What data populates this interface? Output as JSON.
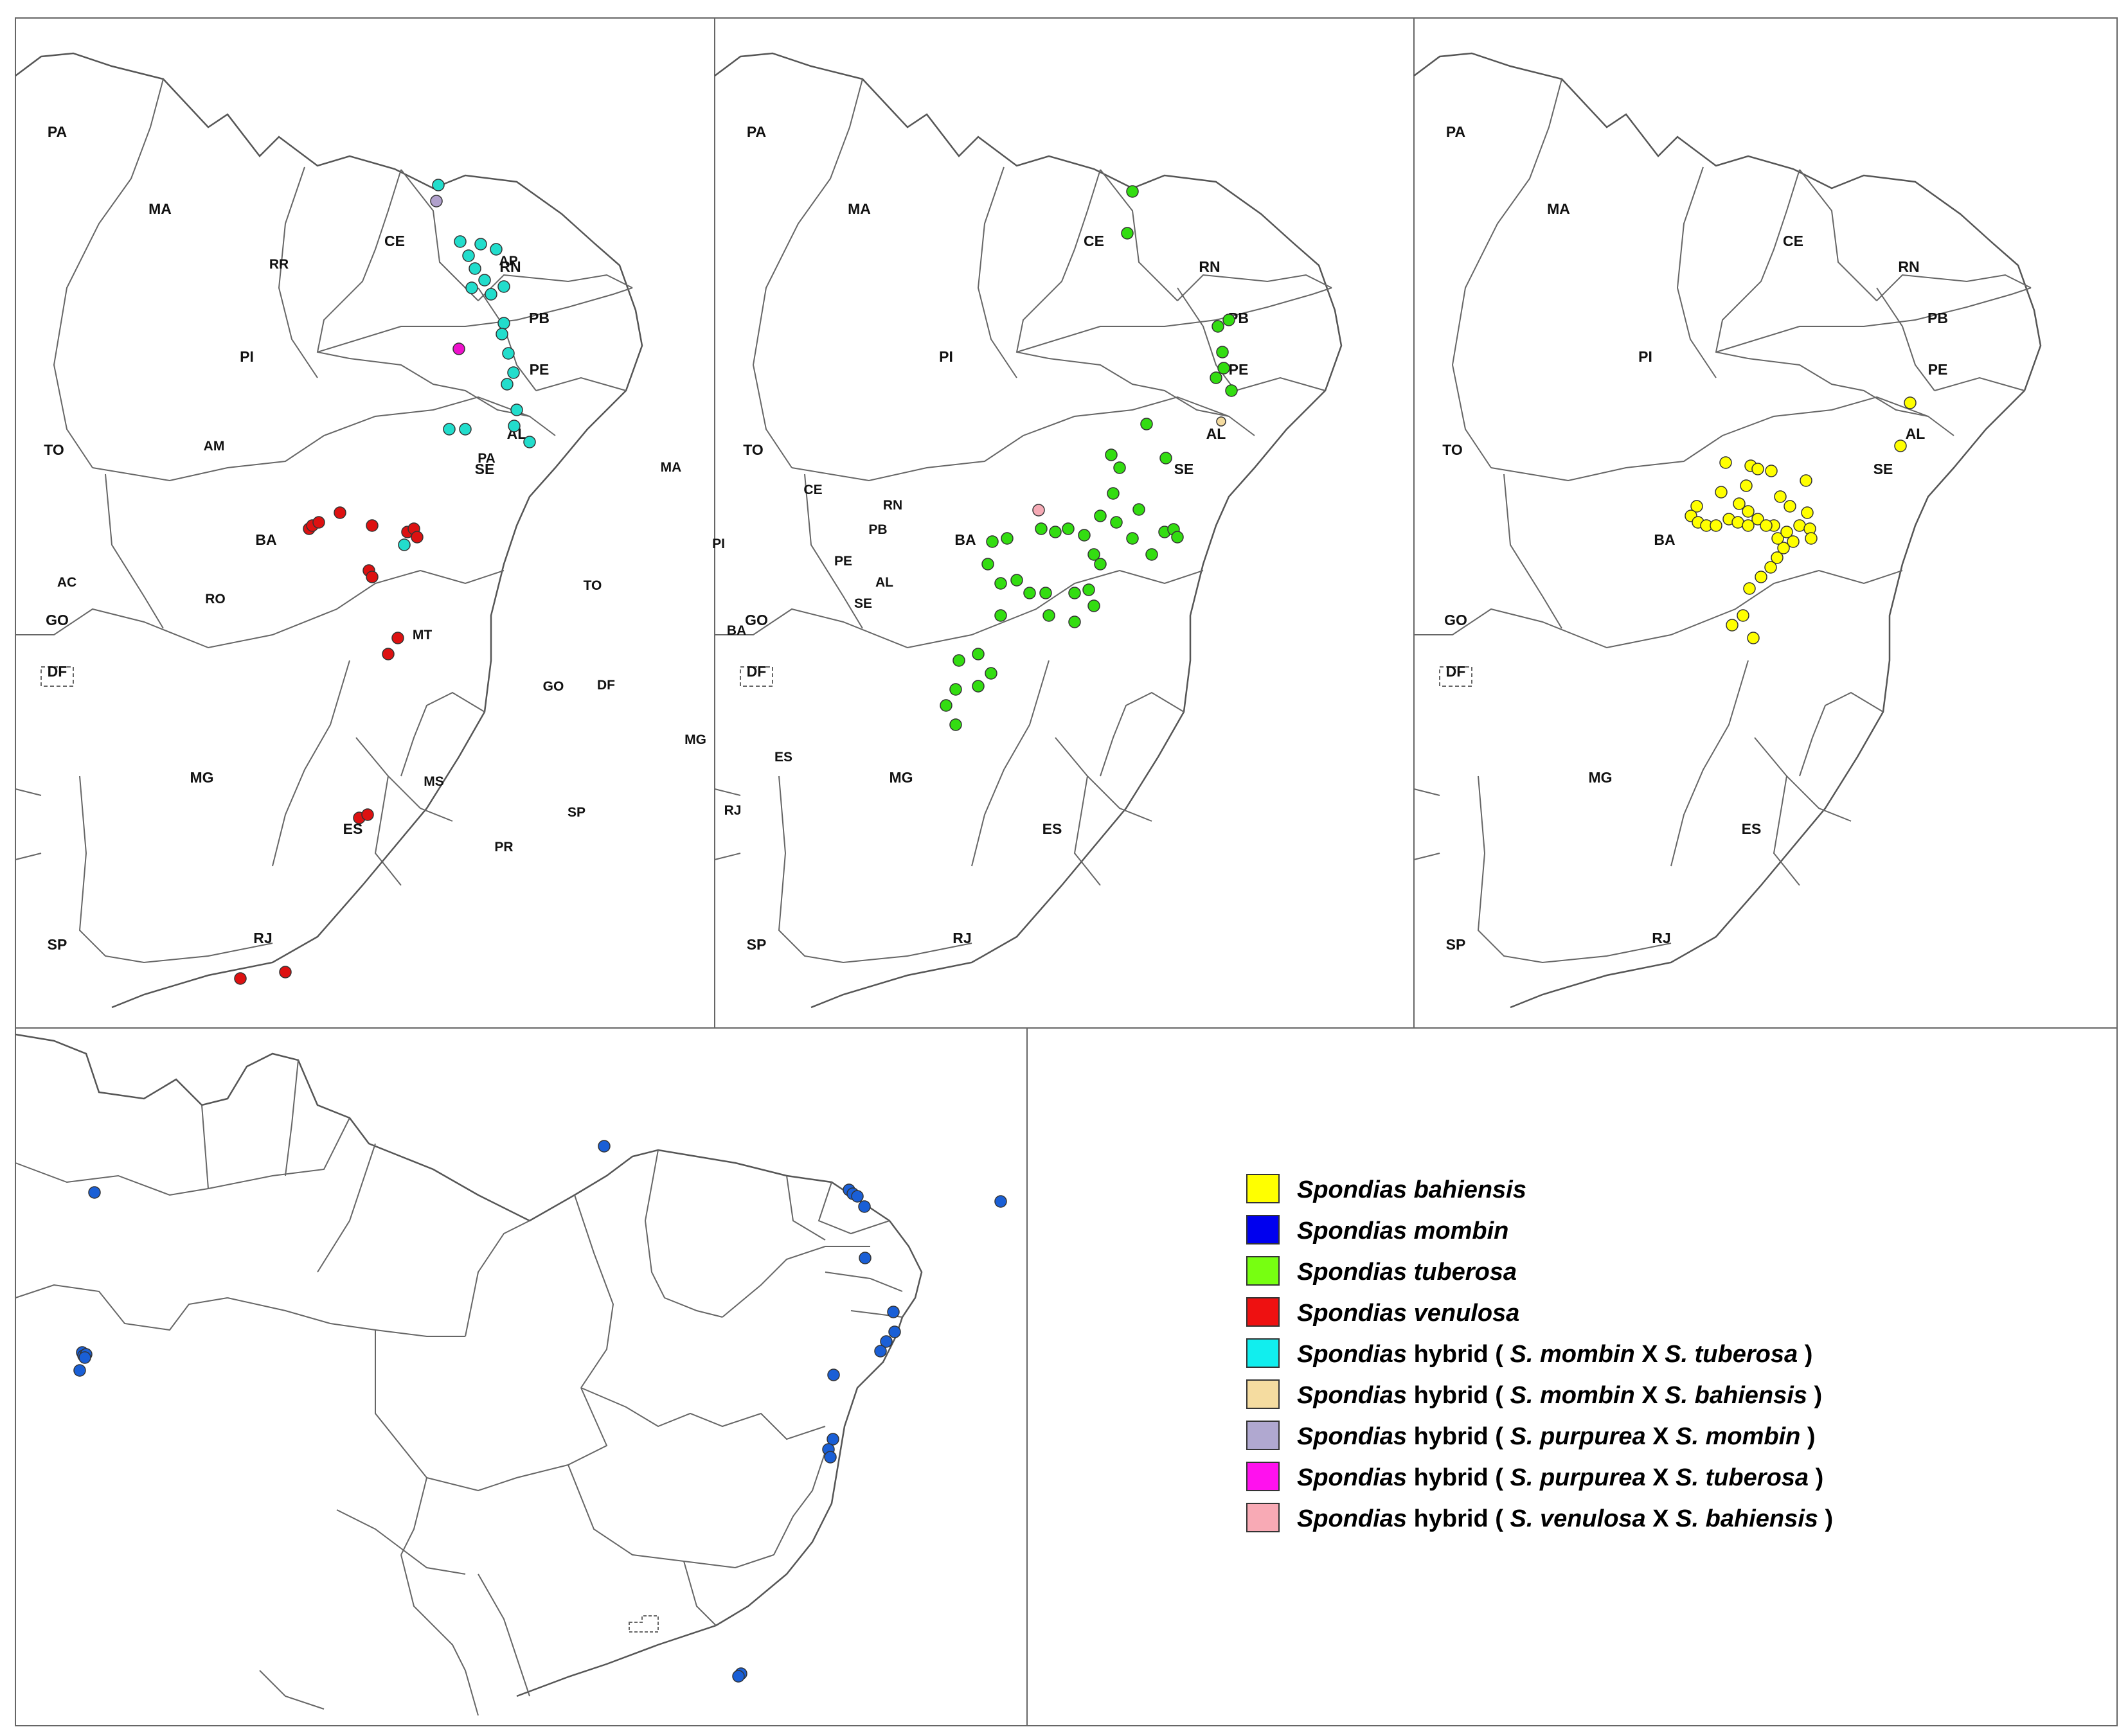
{
  "colors": {
    "bahiensis": "#ffff00",
    "mombin": "#1a5fd6",
    "tuberosa": "#33dd11",
    "venulosa": "#dd1111",
    "hyb_mombin_tuberosa": "#22ddcc",
    "hyb_mombin_bahiensis": "#f5dca0",
    "hyb_purpurea_mombin": "#b0a0cc",
    "hyb_purpurea_tuberosa": "#ee11cc",
    "hyb_venulosa_bahiensis": "#f5aab5"
  },
  "panel1": {
    "states": [
      "PA",
      "MA",
      "CE",
      "RN",
      "PB",
      "PE",
      "PI",
      "AL",
      "TO",
      "SE",
      "BA",
      "GO",
      "DF",
      "MG",
      "ES",
      "SP",
      "RJ"
    ]
  },
  "panel2": {
    "states": [
      "PA",
      "MA",
      "CE",
      "RN",
      "PB",
      "PE",
      "PI",
      "AL",
      "TO",
      "SE",
      "BA",
      "GO",
      "DF",
      "MG",
      "ES",
      "SP",
      "RJ"
    ]
  },
  "panel3": {
    "states": [
      "PA",
      "MA",
      "CE",
      "RN",
      "PB",
      "PE",
      "PI",
      "AL",
      "TO",
      "SE",
      "BA",
      "GO",
      "DF",
      "MG",
      "ES",
      "SP",
      "RJ"
    ]
  },
  "panel4": {
    "states": [
      "RR",
      "AP",
      "AM",
      "PA",
      "MA",
      "CE",
      "RN",
      "PB",
      "PI",
      "PE",
      "AL",
      "AC",
      "SE",
      "RO",
      "TO",
      "MT",
      "BA",
      "GO",
      "DF",
      "MG",
      "ES",
      "MS",
      "SP",
      "RJ",
      "PR"
    ]
  },
  "legend": [
    {
      "genus": "Spondias",
      "name": "bahiensis",
      "color": "#ffff00"
    },
    {
      "genus": "Spondias",
      "name": "mombin",
      "color": "#0000ee"
    },
    {
      "genus": "Spondias",
      "name": "tuberosa",
      "color": "#77ff11"
    },
    {
      "genus": "Spondias",
      "name": "venulosa",
      "color": "#ee1111"
    },
    {
      "genus": "Spondias",
      "hybrid": "hybrid",
      "open": "(",
      "a": "S. mombin",
      "x": "X",
      "b": "S. tuberosa",
      "close": ")",
      "color": "#11eeee"
    },
    {
      "genus": "Spondias",
      "hybrid": "hybrid",
      "open": "(",
      "a": "S. mombin",
      "x": "X",
      "b": "S. bahiensis",
      "close": ")",
      "color": "#f5dca0"
    },
    {
      "genus": "Spondias",
      "hybrid": "hybrid",
      "open": "(",
      "a": "S. purpurea",
      "x": "X",
      "b": "S. mombin",
      "close": ")",
      "color": "#b0a8d0"
    },
    {
      "genus": "Spondias",
      "hybrid": "hybrid",
      "open": "(",
      "a": "S. purpurea",
      "x": "X",
      "b": "S. tuberosa",
      "close": ")",
      "color": "#ff11ee"
    },
    {
      "genus": "Spondias",
      "hybrid": "hybrid",
      "open": "(",
      "a": "S. venulosa",
      "x": "X",
      "b": "S. bahiensis",
      "close": ")",
      "color": "#f8aab5"
    }
  ]
}
